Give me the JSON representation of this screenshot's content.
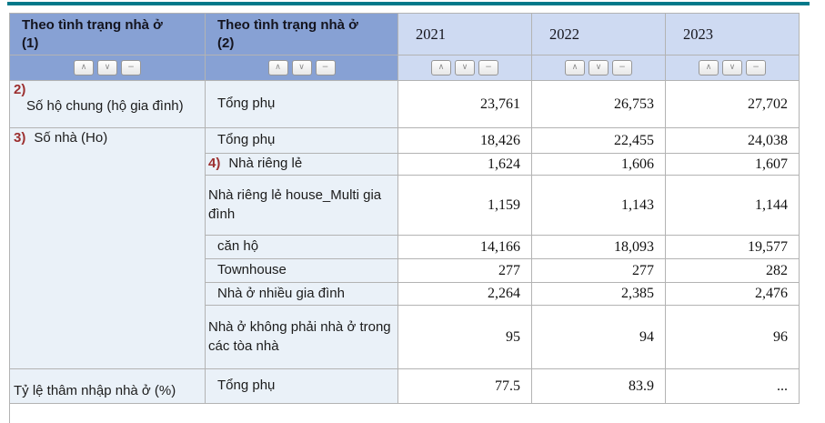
{
  "header": {
    "col1_title": "Theo tình trạng nhà ở",
    "col1_index": "(1)",
    "col2_title": "Theo tình trạng nhà ở",
    "col2_index": "(2)",
    "years": [
      "2021",
      "2022",
      "2023"
    ]
  },
  "sort_buttons": [
    {
      "name": "sort-ascending-button",
      "glyph": "∧"
    },
    {
      "name": "sort-descending-button",
      "glyph": "∨"
    },
    {
      "name": "sort-clear-button",
      "glyph": "−"
    }
  ],
  "rows": [
    {
      "label1": {
        "marker": "2)",
        "text": "Số hộ chung (hộ gia đình)",
        "layout": "stacked",
        "rowspan": 1
      },
      "label2": {
        "text": "Tổng phụ",
        "indent": true
      },
      "values": [
        "23,761",
        "26,753",
        "27,702"
      ]
    },
    {
      "label1": {
        "marker": "3)",
        "text": "Số nhà (Ho)",
        "layout": "inline",
        "rowspan": 7
      },
      "label2": {
        "text": "Tổng phụ",
        "indent": true
      },
      "values": [
        "18,426",
        "22,455",
        "24,038"
      ]
    },
    {
      "label2": {
        "marker": "4)",
        "text": "Nhà riêng lẻ",
        "indent": false
      },
      "values": [
        "1,624",
        "1,606",
        "1,607"
      ]
    },
    {
      "label2": {
        "text": "Nhà riêng lẻ house_Multi gia đình",
        "indent": false
      },
      "values": [
        "1,159",
        "1,143",
        "1,144"
      ]
    },
    {
      "label2": {
        "text": "căn hộ",
        "indent": true
      },
      "values": [
        "14,166",
        "18,093",
        "19,577"
      ]
    },
    {
      "label2": {
        "text": "Townhouse",
        "indent": true
      },
      "values": [
        "277",
        "277",
        "282"
      ]
    },
    {
      "label2": {
        "text": "Nhà ở nhiều gia đình",
        "indent": true
      },
      "values": [
        "2,264",
        "2,385",
        "2,476"
      ]
    },
    {
      "label2": {
        "text": "Nhà ở không phải nhà ở trong các tòa nhà",
        "indent": false
      },
      "values": [
        "95",
        "94",
        "96"
      ]
    },
    {
      "label1": {
        "text": "Tỷ lệ thâm nhập nhà ở (%)",
        "rowspan": 1,
        "valign": "bottom"
      },
      "label2": {
        "text": "Tổng phụ",
        "indent": true
      },
      "values": [
        "77.5",
        "83.9",
        "..."
      ]
    }
  ],
  "colors": {
    "accent": "#00798A",
    "header_blue": "#87A1D4",
    "header_light_blue": "#CEDAF2",
    "row_light_blue": "#EAF1F8",
    "marker_red": "#9C2F2F",
    "grid_line": "#B3B3B3"
  }
}
